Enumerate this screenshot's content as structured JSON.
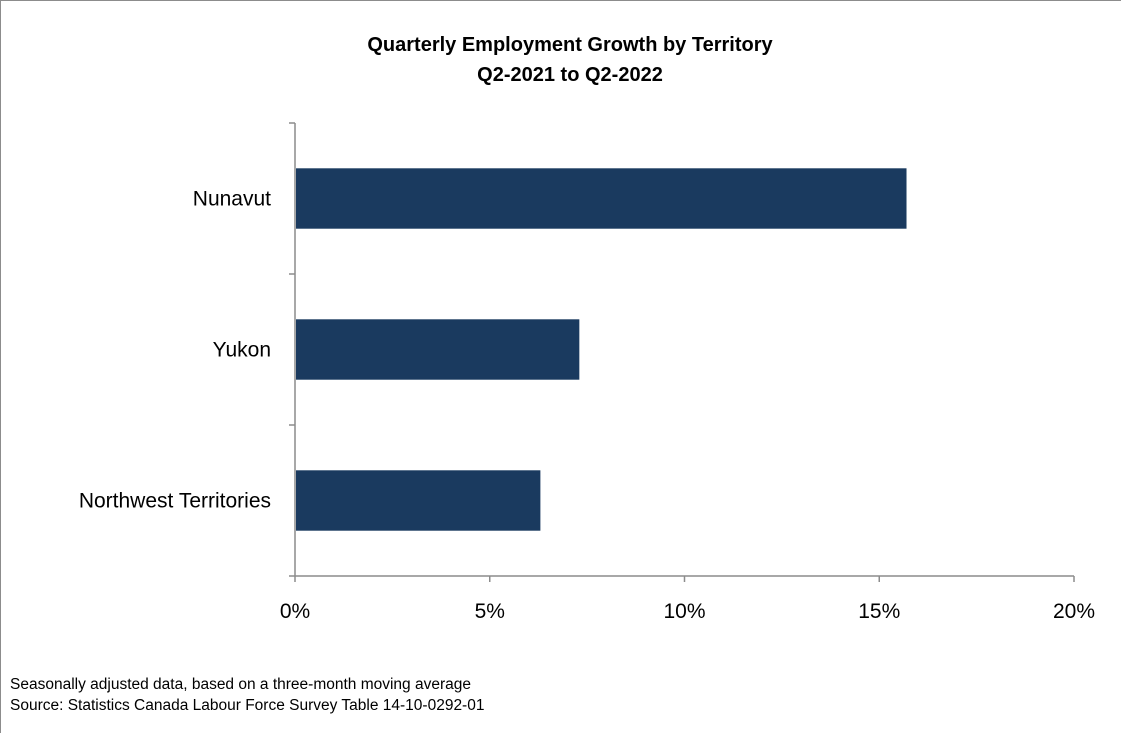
{
  "chart_data": {
    "type": "bar",
    "orientation": "horizontal",
    "title": "Quarterly Employment Growth by Territory",
    "subtitle": "Q2-2021 to Q2-2022",
    "categories": [
      "Nunavut",
      "Yukon",
      "Northwest Territories"
    ],
    "values": [
      15.7,
      7.3,
      6.3
    ],
    "value_unit": "%",
    "xlim": [
      0,
      20
    ],
    "x_ticks": [
      0,
      5,
      10,
      15,
      20
    ],
    "x_tick_labels": [
      "0%",
      "5%",
      "10%",
      "15%",
      "20%"
    ],
    "xlabel": "",
    "ylabel": "",
    "grid": false,
    "legend": "none",
    "bar_color": "#1a3a5f"
  },
  "notes": [
    "Seasonally adjusted data, based on a three-month moving average",
    "Source: Statistics Canada Labour Force Survey Table 14-10-0292-01"
  ]
}
